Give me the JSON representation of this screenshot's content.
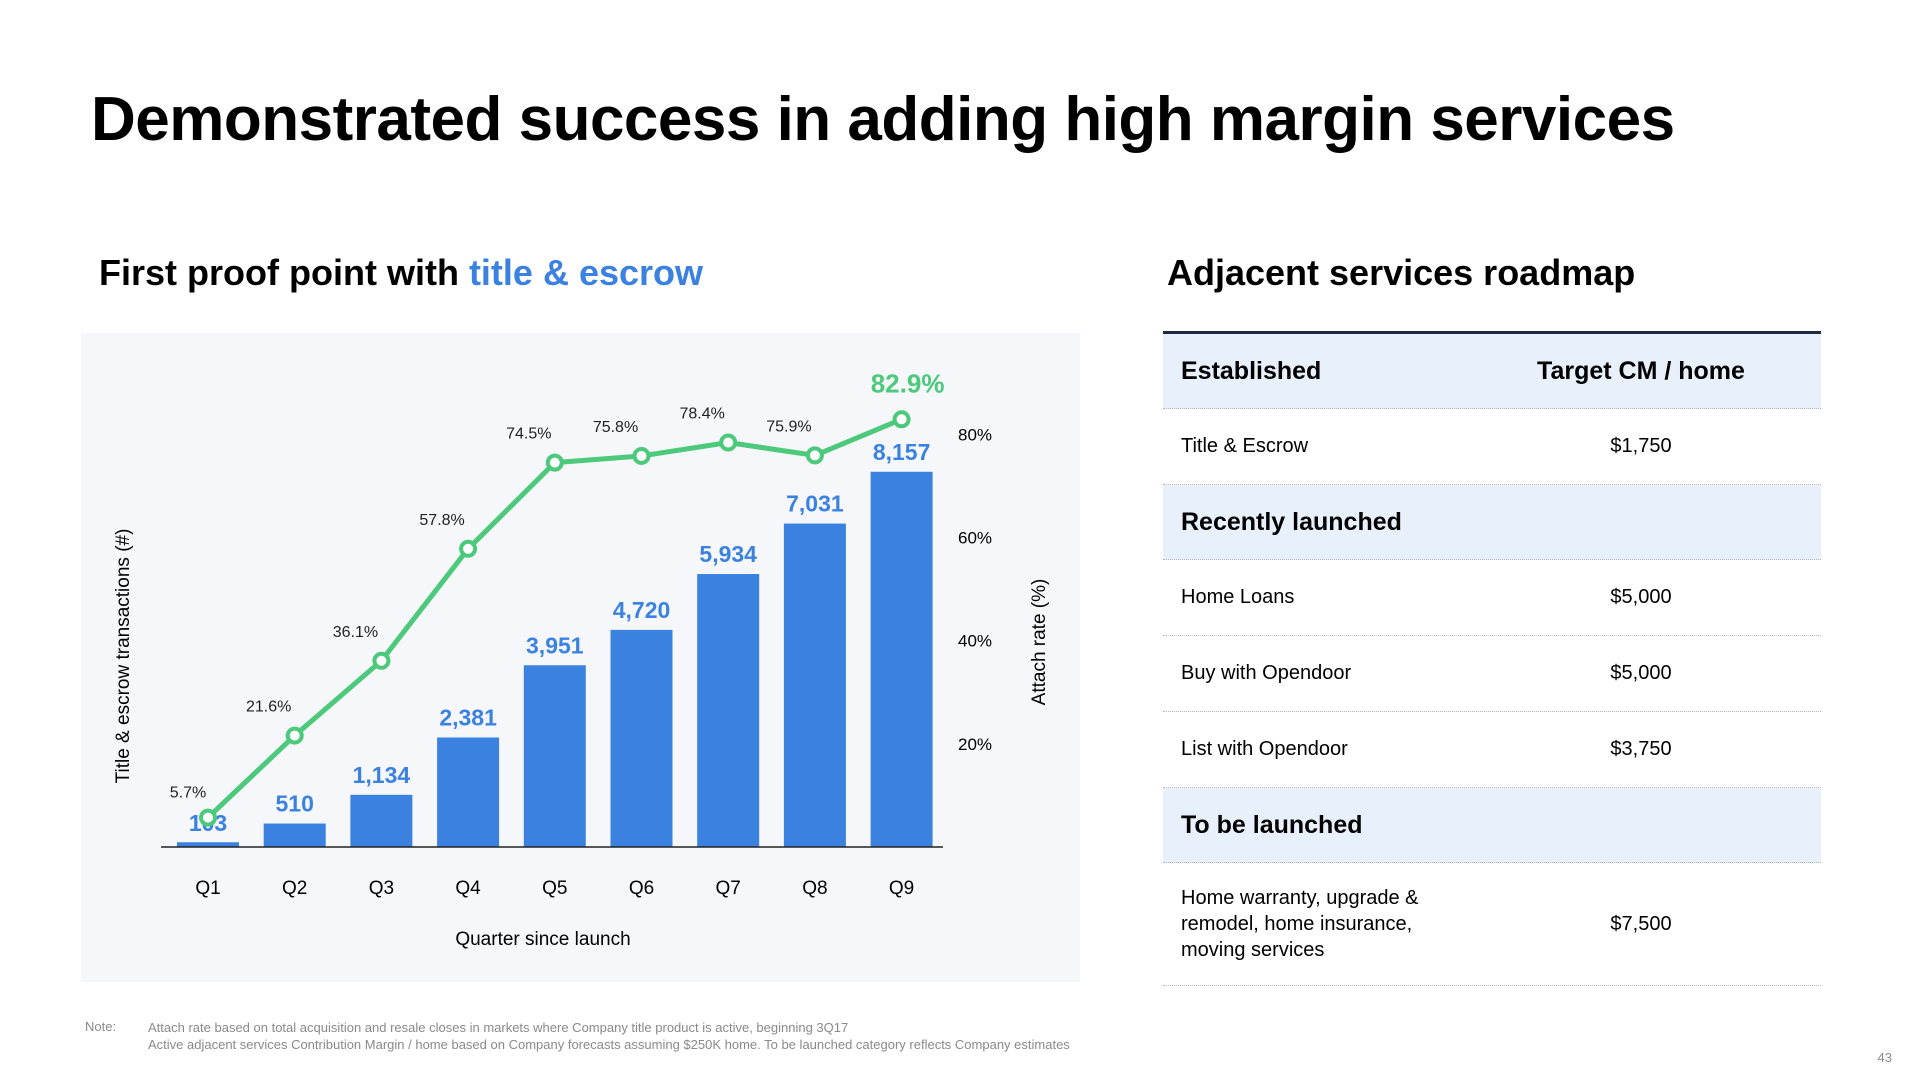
{
  "title": "Demonstrated success in adding high margin services",
  "left_subtitle": {
    "prefix": "First proof point with ",
    "accent": "title & escrow"
  },
  "right_subtitle": "Adjacent services roadmap",
  "chart_data": {
    "type": "bar",
    "categories": [
      "Q1",
      "Q2",
      "Q3",
      "Q4",
      "Q5",
      "Q6",
      "Q7",
      "Q8",
      "Q9"
    ],
    "series": [
      {
        "name": "Title & escrow transactions (#)",
        "type": "bar",
        "values": [
          103,
          510,
          1134,
          2381,
          3951,
          4720,
          5934,
          7031,
          8157
        ],
        "labels": [
          "103",
          "510",
          "1,134",
          "2,381",
          "3,951",
          "4,720",
          "5,934",
          "7,031",
          "8,157"
        ],
        "color": "#3b82e0"
      },
      {
        "name": "Attach rate (%)",
        "type": "line",
        "values": [
          5.7,
          21.6,
          36.1,
          57.8,
          74.5,
          75.8,
          78.4,
          75.9,
          82.9
        ],
        "labels": [
          "5.7%",
          "21.6%",
          "36.1%",
          "57.8%",
          "74.5%",
          "75.8%",
          "78.4%",
          "75.9%",
          "82.9%"
        ],
        "color": "#4cc97a",
        "axis": "right"
      }
    ],
    "xlabel": "Quarter since launch",
    "ylabel": "Title & escrow transactions (#)",
    "y2label": "Attach rate (%)",
    "y2_ticks": [
      "20%",
      "40%",
      "60%",
      "80%"
    ],
    "y2_tick_values": [
      20,
      40,
      60,
      80
    ],
    "ylim": [
      0,
      9000
    ],
    "y2lim": [
      0,
      88
    ],
    "grid": false
  },
  "table": {
    "header": {
      "col1": "Established",
      "col2": "Target CM / home"
    },
    "established": [
      {
        "name": "Title & Escrow",
        "value": "$1,750"
      }
    ],
    "recent_label": "Recently launched",
    "recent": [
      {
        "name": "Home Loans",
        "value": "$5,000"
      },
      {
        "name": "Buy with Opendoor",
        "value": "$5,000"
      },
      {
        "name": "List with Opendoor",
        "value": "$3,750"
      }
    ],
    "future_label": "To be launched",
    "future": [
      {
        "name": "Home warranty, upgrade & remodel, home insurance, moving services",
        "value": "$7,500"
      }
    ]
  },
  "note": {
    "label": "Note:",
    "line1": "Attach rate based on total acquisition and resale closes in markets where Company title product is active, beginning 3Q17",
    "line2": "Active adjacent services Contribution Margin / home based on Company forecasts assuming $250K home. To be launched category reflects Company estimates"
  },
  "page_number": "43"
}
